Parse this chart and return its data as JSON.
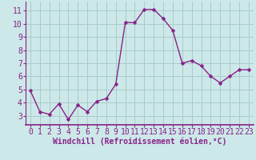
{
  "x": [
    0,
    1,
    2,
    3,
    4,
    5,
    6,
    7,
    8,
    9,
    10,
    11,
    12,
    13,
    14,
    15,
    16,
    17,
    18,
    19,
    20,
    21,
    22,
    23
  ],
  "y": [
    4.9,
    3.3,
    3.1,
    3.9,
    2.7,
    3.8,
    3.3,
    4.1,
    4.3,
    5.4,
    10.1,
    10.1,
    11.1,
    11.1,
    10.4,
    9.5,
    7.0,
    7.2,
    6.8,
    6.0,
    5.5,
    6.0,
    6.5,
    6.5
  ],
  "line_color": "#882288",
  "marker_color": "#882288",
  "bg_color": "#cce8e8",
  "grid_color": "#aacccc",
  "xlabel": "Windchill (Refroidissement éolien,°C)",
  "xlim": [
    -0.5,
    23.5
  ],
  "ylim": [
    2.3,
    11.7
  ],
  "yticks": [
    3,
    4,
    5,
    6,
    7,
    8,
    9,
    10,
    11
  ],
  "xticks": [
    0,
    1,
    2,
    3,
    4,
    5,
    6,
    7,
    8,
    9,
    10,
    11,
    12,
    13,
    14,
    15,
    16,
    17,
    18,
    19,
    20,
    21,
    22,
    23
  ],
  "xlabel_fontsize": 7,
  "tick_fontsize": 7,
  "line_width": 1.0,
  "marker_size": 2.5
}
